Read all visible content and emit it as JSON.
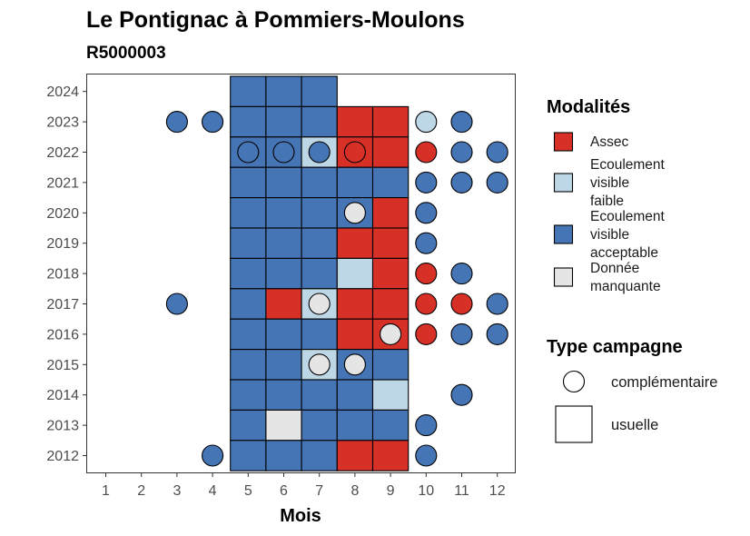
{
  "chart_data": {
    "type": "heatmap",
    "title": "Le Pontignac à Pommiers-Moulons",
    "subtitle": "R5000003",
    "xlabel": "Mois",
    "ylabel": "",
    "x_ticks": [
      "1",
      "2",
      "3",
      "4",
      "5",
      "6",
      "7",
      "8",
      "9",
      "10",
      "11",
      "12"
    ],
    "y_ticks": [
      "2012",
      "2013",
      "2014",
      "2015",
      "2016",
      "2017",
      "2018",
      "2019",
      "2020",
      "2021",
      "2022",
      "2023",
      "2024"
    ],
    "modalites": [
      {
        "key": "assec",
        "label": "Assec",
        "label_lines": [
          "Assec"
        ],
        "color": "#d73027"
      },
      {
        "key": "faible",
        "label": "Ecoulement visible faible",
        "label_lines": [
          "Ecoulement",
          "visible",
          "faible"
        ],
        "color": "#bdd7e7"
      },
      {
        "key": "acceptable",
        "label": "Ecoulement visible acceptable",
        "label_lines": [
          "Ecoulement",
          "visible",
          "acceptable"
        ],
        "color": "#4575b4"
      },
      {
        "key": "manquante",
        "label": "Donnée manquante",
        "label_lines": [
          "Donnée",
          "manquante"
        ],
        "color": "#e5e5e5"
      }
    ],
    "legend_modalites_title": "Modalités",
    "legend_campagne_title": "Type campagne",
    "campagne_types": [
      {
        "key": "complementaire",
        "label": "complémentaire",
        "shape": "circle"
      },
      {
        "key": "usuelle",
        "label": "usuelle",
        "shape": "square"
      }
    ],
    "usuelle": [
      {
        "year": 2024,
        "month": 5,
        "m": "acceptable"
      },
      {
        "year": 2024,
        "month": 6,
        "m": "acceptable"
      },
      {
        "year": 2024,
        "month": 7,
        "m": "acceptable"
      },
      {
        "year": 2023,
        "month": 5,
        "m": "acceptable"
      },
      {
        "year": 2023,
        "month": 6,
        "m": "acceptable"
      },
      {
        "year": 2023,
        "month": 7,
        "m": "acceptable"
      },
      {
        "year": 2023,
        "month": 8,
        "m": "assec"
      },
      {
        "year": 2023,
        "month": 9,
        "m": "assec"
      },
      {
        "year": 2022,
        "month": 5,
        "m": "acceptable"
      },
      {
        "year": 2022,
        "month": 6,
        "m": "acceptable"
      },
      {
        "year": 2022,
        "month": 7,
        "m": "faible"
      },
      {
        "year": 2022,
        "month": 8,
        "m": "assec"
      },
      {
        "year": 2022,
        "month": 9,
        "m": "assec"
      },
      {
        "year": 2021,
        "month": 5,
        "m": "acceptable"
      },
      {
        "year": 2021,
        "month": 6,
        "m": "acceptable"
      },
      {
        "year": 2021,
        "month": 7,
        "m": "acceptable"
      },
      {
        "year": 2021,
        "month": 8,
        "m": "acceptable"
      },
      {
        "year": 2021,
        "month": 9,
        "m": "acceptable"
      },
      {
        "year": 2020,
        "month": 5,
        "m": "acceptable"
      },
      {
        "year": 2020,
        "month": 6,
        "m": "acceptable"
      },
      {
        "year": 2020,
        "month": 7,
        "m": "acceptable"
      },
      {
        "year": 2020,
        "month": 8,
        "m": "acceptable"
      },
      {
        "year": 2020,
        "month": 9,
        "m": "assec"
      },
      {
        "year": 2019,
        "month": 5,
        "m": "acceptable"
      },
      {
        "year": 2019,
        "month": 6,
        "m": "acceptable"
      },
      {
        "year": 2019,
        "month": 7,
        "m": "acceptable"
      },
      {
        "year": 2019,
        "month": 8,
        "m": "assec"
      },
      {
        "year": 2019,
        "month": 9,
        "m": "assec"
      },
      {
        "year": 2018,
        "month": 5,
        "m": "acceptable"
      },
      {
        "year": 2018,
        "month": 6,
        "m": "acceptable"
      },
      {
        "year": 2018,
        "month": 7,
        "m": "acceptable"
      },
      {
        "year": 2018,
        "month": 8,
        "m": "faible"
      },
      {
        "year": 2018,
        "month": 9,
        "m": "assec"
      },
      {
        "year": 2017,
        "month": 5,
        "m": "acceptable"
      },
      {
        "year": 2017,
        "month": 6,
        "m": "assec"
      },
      {
        "year": 2017,
        "month": 7,
        "m": "faible"
      },
      {
        "year": 2017,
        "month": 8,
        "m": "assec"
      },
      {
        "year": 2017,
        "month": 9,
        "m": "assec"
      },
      {
        "year": 2016,
        "month": 5,
        "m": "acceptable"
      },
      {
        "year": 2016,
        "month": 6,
        "m": "acceptable"
      },
      {
        "year": 2016,
        "month": 7,
        "m": "acceptable"
      },
      {
        "year": 2016,
        "month": 8,
        "m": "assec"
      },
      {
        "year": 2016,
        "month": 9,
        "m": "assec"
      },
      {
        "year": 2015,
        "month": 5,
        "m": "acceptable"
      },
      {
        "year": 2015,
        "month": 6,
        "m": "acceptable"
      },
      {
        "year": 2015,
        "month": 7,
        "m": "faible"
      },
      {
        "year": 2015,
        "month": 8,
        "m": "acceptable"
      },
      {
        "year": 2015,
        "month": 9,
        "m": "acceptable"
      },
      {
        "year": 2014,
        "month": 5,
        "m": "acceptable"
      },
      {
        "year": 2014,
        "month": 6,
        "m": "acceptable"
      },
      {
        "year": 2014,
        "month": 7,
        "m": "acceptable"
      },
      {
        "year": 2014,
        "month": 8,
        "m": "acceptable"
      },
      {
        "year": 2014,
        "month": 9,
        "m": "faible"
      },
      {
        "year": 2013,
        "month": 5,
        "m": "acceptable"
      },
      {
        "year": 2013,
        "month": 6,
        "m": "manquante"
      },
      {
        "year": 2013,
        "month": 7,
        "m": "acceptable"
      },
      {
        "year": 2013,
        "month": 8,
        "m": "acceptable"
      },
      {
        "year": 2013,
        "month": 9,
        "m": "acceptable"
      },
      {
        "year": 2012,
        "month": 5,
        "m": "acceptable"
      },
      {
        "year": 2012,
        "month": 6,
        "m": "acceptable"
      },
      {
        "year": 2012,
        "month": 7,
        "m": "acceptable"
      },
      {
        "year": 2012,
        "month": 8,
        "m": "assec"
      },
      {
        "year": 2012,
        "month": 9,
        "m": "assec"
      }
    ],
    "complementaire": [
      {
        "year": 2023,
        "month": 3,
        "m": "acceptable"
      },
      {
        "year": 2023,
        "month": 4,
        "m": "acceptable"
      },
      {
        "year": 2023,
        "month": 10,
        "m": "faible"
      },
      {
        "year": 2023,
        "month": 11,
        "m": "acceptable"
      },
      {
        "year": 2022,
        "month": 5,
        "m": "acceptable"
      },
      {
        "year": 2022,
        "month": 6,
        "m": "acceptable"
      },
      {
        "year": 2022,
        "month": 7,
        "m": "acceptable"
      },
      {
        "year": 2022,
        "month": 8,
        "m": "assec"
      },
      {
        "year": 2022,
        "month": 10,
        "m": "assec"
      },
      {
        "year": 2022,
        "month": 11,
        "m": "acceptable"
      },
      {
        "year": 2022,
        "month": 12,
        "m": "acceptable"
      },
      {
        "year": 2021,
        "month": 10,
        "m": "acceptable"
      },
      {
        "year": 2021,
        "month": 11,
        "m": "acceptable"
      },
      {
        "year": 2021,
        "month": 12,
        "m": "acceptable"
      },
      {
        "year": 2020,
        "month": 8,
        "m": "manquante"
      },
      {
        "year": 2020,
        "month": 10,
        "m": "acceptable"
      },
      {
        "year": 2019,
        "month": 10,
        "m": "acceptable"
      },
      {
        "year": 2018,
        "month": 10,
        "m": "assec"
      },
      {
        "year": 2018,
        "month": 11,
        "m": "acceptable"
      },
      {
        "year": 2017,
        "month": 3,
        "m": "acceptable"
      },
      {
        "year": 2017,
        "month": 7,
        "m": "manquante"
      },
      {
        "year": 2017,
        "month": 10,
        "m": "assec"
      },
      {
        "year": 2017,
        "month": 11,
        "m": "assec"
      },
      {
        "year": 2017,
        "month": 12,
        "m": "acceptable"
      },
      {
        "year": 2016,
        "month": 9,
        "m": "manquante"
      },
      {
        "year": 2016,
        "month": 10,
        "m": "assec"
      },
      {
        "year": 2016,
        "month": 11,
        "m": "acceptable"
      },
      {
        "year": 2016,
        "month": 12,
        "m": "acceptable"
      },
      {
        "year": 2015,
        "month": 7,
        "m": "manquante"
      },
      {
        "year": 2015,
        "month": 8,
        "m": "manquante"
      },
      {
        "year": 2014,
        "month": 11,
        "m": "acceptable"
      },
      {
        "year": 2013,
        "month": 10,
        "m": "acceptable"
      },
      {
        "year": 2012,
        "month": 4,
        "m": "acceptable"
      },
      {
        "year": 2012,
        "month": 10,
        "m": "acceptable"
      }
    ]
  }
}
